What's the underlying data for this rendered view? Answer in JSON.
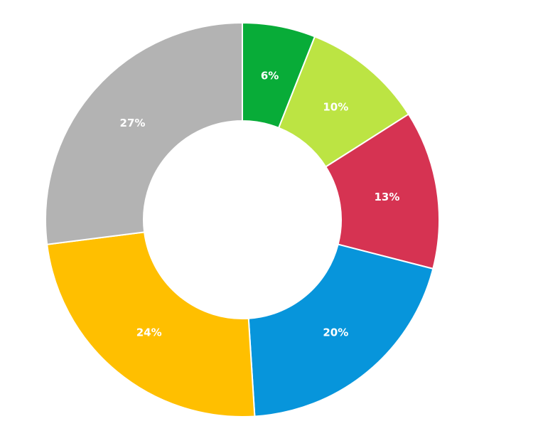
{
  "chart_data": {
    "type": "pie",
    "variant": "donut",
    "title": "",
    "legend": "none",
    "slices": [
      {
        "label": "6%",
        "value": 6,
        "color": "#08ac38"
      },
      {
        "label": "10%",
        "value": 10,
        "color": "#bce443"
      },
      {
        "label": "13%",
        "value": 13,
        "color": "#d63352"
      },
      {
        "label": "20%",
        "value": 20,
        "color": "#0795db"
      },
      {
        "label": "24%",
        "value": 24,
        "color": "#ffbf00"
      },
      {
        "label": "27%",
        "value": 27,
        "color": "#b3b3b3"
      }
    ]
  }
}
